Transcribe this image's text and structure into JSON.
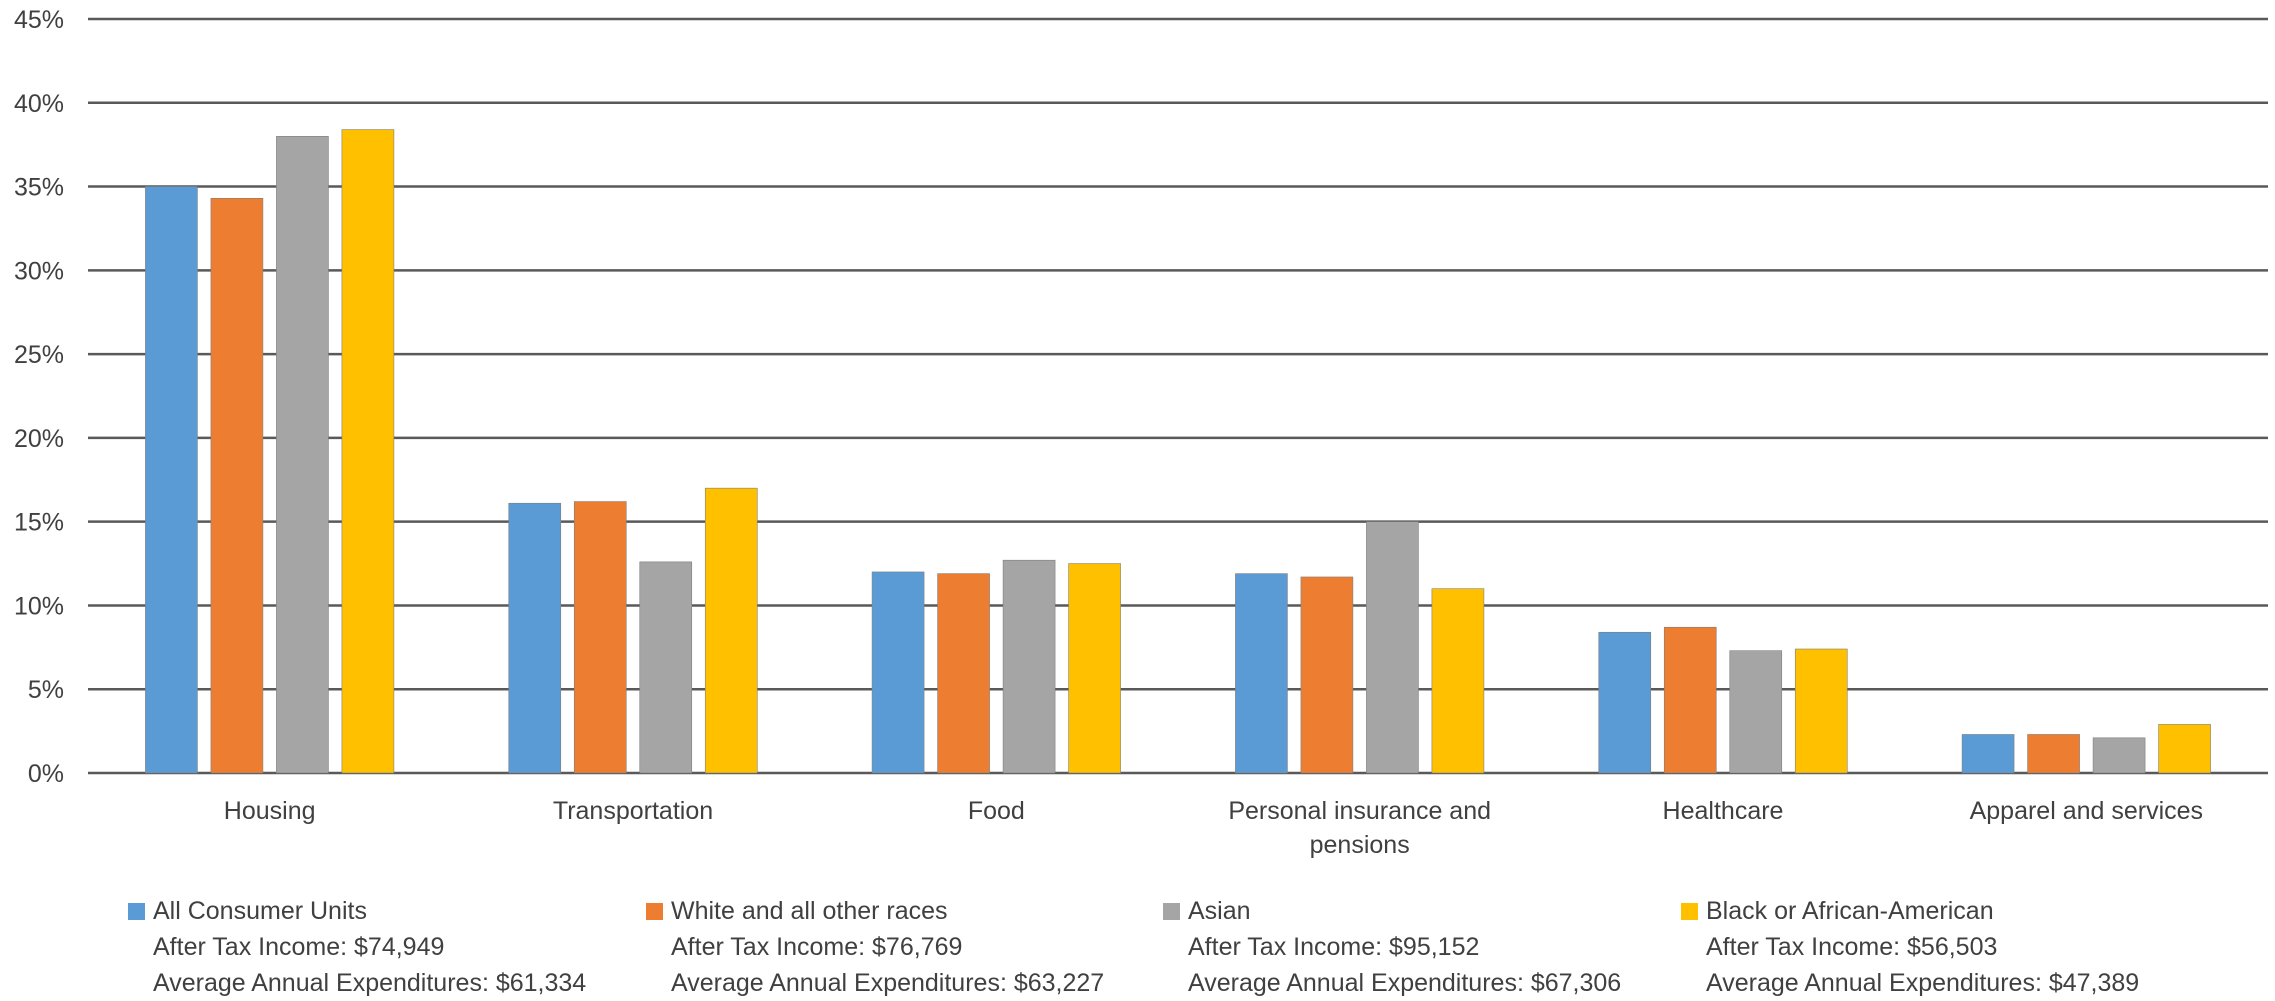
{
  "chart_data": {
    "type": "bar",
    "categories": [
      "Housing",
      "Transportation",
      "Food",
      "Personal insurance and pensions",
      "Healthcare",
      "Apparel and services"
    ],
    "series": [
      {
        "name": "All Consumer Units",
        "color": "#5B9BD5",
        "values": [
          35.0,
          16.1,
          12.0,
          11.9,
          8.4,
          2.3
        ]
      },
      {
        "name": "White and all other races",
        "color": "#ED7D31",
        "values": [
          34.3,
          16.2,
          11.9,
          11.7,
          8.7,
          2.3
        ]
      },
      {
        "name": "Asian",
        "color": "#A5A5A5",
        "values": [
          38.0,
          12.6,
          12.7,
          15.0,
          7.3,
          2.1
        ]
      },
      {
        "name": "Black or African-American",
        "color": "#FFC000",
        "values": [
          38.4,
          17.0,
          12.5,
          11.0,
          7.4,
          2.9
        ]
      }
    ],
    "ylim": [
      0,
      45
    ],
    "yticks": [
      "0%",
      "5%",
      "10%",
      "15%",
      "20%",
      "25%",
      "30%",
      "35%",
      "40%",
      "45%"
    ],
    "grid": true,
    "legend_position": "bottom",
    "title": "",
    "xlabel": "",
    "ylabel": ""
  },
  "legend": [
    {
      "name": "All Consumer Units",
      "income": "After Tax Income: $74,949",
      "expenditures": "Average Annual Expenditures: $61,334"
    },
    {
      "name": "White and all other races",
      "income": "After Tax Income: $76,769",
      "expenditures": "Average Annual Expenditures: $63,227"
    },
    {
      "name": "Asian",
      "income": "After Tax Income: $95,152",
      "expenditures": "Average Annual Expenditures: $67,306"
    },
    {
      "name": "Black or African-American",
      "income": "After Tax Income: $56,503",
      "expenditures": "Average Annual Expenditures: $47,389"
    }
  ],
  "colors": {
    "gridline": "#595959",
    "axis_text": "#404040",
    "bar_outline": "#7f7f7f"
  }
}
